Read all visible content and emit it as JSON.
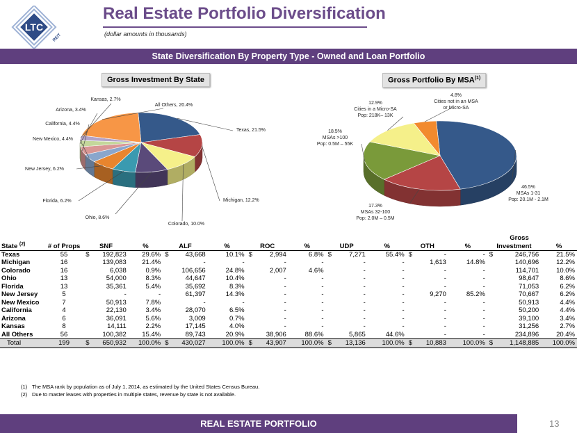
{
  "header": {
    "title": "Real Estate Portfolio Diversification",
    "subtitle": "(dollar amounts in thousands)",
    "logo_text": "LTC",
    "logo_subtext": "REIT"
  },
  "banner": "State Diversification  By Property Type - Owned and Loan Portfolio",
  "chart_data": [
    {
      "type": "pie",
      "title": "Gross Investment By State",
      "slices": [
        {
          "label": "Texas, 21.5%",
          "value": 21.5,
          "color": "#35598a"
        },
        {
          "label": "Michigan, 12.2%",
          "value": 12.2,
          "color": "#b54545"
        },
        {
          "label": "Colorado, 10.0%",
          "value": 10.0,
          "color": "#f5f08a"
        },
        {
          "label": "Ohio, 8.6%",
          "value": 8.6,
          "color": "#5a4a7a"
        },
        {
          "label": "Florida, 6.2%",
          "value": 6.2,
          "color": "#3a9ab0"
        },
        {
          "label": "New Jersey, 6.2%",
          "value": 6.2,
          "color": "#e8852e"
        },
        {
          "label": "New Mexico, 4.4%",
          "value": 4.4,
          "color": "#8aa6cc"
        },
        {
          "label": "California, 4.4%",
          "value": 4.4,
          "color": "#d99694"
        },
        {
          "label": "Arizona, 3.4%",
          "value": 3.4,
          "color": "#c4d79b"
        },
        {
          "label": "Kansas, 2.7%",
          "value": 2.7,
          "color": "#b3a2c7"
        },
        {
          "label": "All Others, 20.4%",
          "value": 20.4,
          "color": "#f79646"
        }
      ]
    },
    {
      "type": "pie",
      "title": "Gross Portfolio By MSA",
      "title_sup": "(1)",
      "slices": [
        {
          "label_lines": [
            "46.5%",
            "MSAs 1-31",
            "Pop: 20.1M - 2.1M"
          ],
          "value": 46.5,
          "color": "#35598a"
        },
        {
          "label_lines": [
            "17.3%",
            "MSAs 32-100",
            "Pop: 2.0M – 0.5M"
          ],
          "value": 17.3,
          "color": "#b54545"
        },
        {
          "label_lines": [
            "18.5%",
            "MSAs  >100",
            "Pop: 0.5M – 55K"
          ],
          "value": 18.5,
          "color": "#7a9a3a"
        },
        {
          "label_lines": [
            "12.9%",
            "Cities in a Micro-SA",
            "Pop: 218K– 13K"
          ],
          "value": 12.9,
          "color": "#f5f08a"
        },
        {
          "label_lines": [
            "4.8%",
            "Cities not in an MSA",
            "or Micro-SA"
          ],
          "value": 4.8,
          "color": "#f28a2e"
        }
      ]
    }
  ],
  "table": {
    "gross_top": "Gross",
    "columns": [
      "State",
      "# of Props",
      "SNF",
      "%",
      "ALF",
      "%",
      "ROC",
      "%",
      "UDP",
      "%",
      "OTH",
      "%",
      "Investment",
      "%"
    ],
    "state_sup": "(2)",
    "rows": [
      [
        "Texas",
        "55",
        "$",
        "192,823",
        "29.6%",
        "$",
        "43,668",
        "10.1%",
        "$",
        "2,994",
        "6.8%",
        "$",
        "7,271",
        "55.4%",
        "$",
        "-",
        "-",
        "$",
        "246,756",
        "21.5%"
      ],
      [
        "Michigan",
        "16",
        "",
        "139,083",
        "21.4%",
        "",
        "-",
        "-",
        "",
        "-",
        "-",
        "",
        "-",
        "-",
        "",
        "1,613",
        "14.8%",
        "",
        "140,696",
        "12.2%"
      ],
      [
        "Colorado",
        "16",
        "",
        "6,038",
        "0.9%",
        "",
        "106,656",
        "24.8%",
        "",
        "2,007",
        "4.6%",
        "",
        "-",
        "-",
        "",
        "-",
        "-",
        "",
        "114,701",
        "10.0%"
      ],
      [
        "Ohio",
        "13",
        "",
        "54,000",
        "8.3%",
        "",
        "44,647",
        "10.4%",
        "",
        "-",
        "-",
        "",
        "-",
        "-",
        "",
        "-",
        "-",
        "",
        "98,647",
        "8.6%"
      ],
      [
        "Florida",
        "13",
        "",
        "35,361",
        "5.4%",
        "",
        "35,692",
        "8.3%",
        "",
        "-",
        "-",
        "",
        "-",
        "-",
        "",
        "-",
        "-",
        "",
        "71,053",
        "6.2%"
      ],
      [
        "New Jersey",
        "5",
        "",
        "-",
        "-",
        "",
        "61,397",
        "14.3%",
        "",
        "-",
        "-",
        "",
        "-",
        "-",
        "",
        "9,270",
        "85.2%",
        "",
        "70,667",
        "6.2%"
      ],
      [
        "New Mexico",
        "7",
        "",
        "50,913",
        "7.8%",
        "",
        "-",
        "-",
        "",
        "-",
        "-",
        "",
        "-",
        "-",
        "",
        "-",
        "-",
        "",
        "50,913",
        "4.4%"
      ],
      [
        "California",
        "4",
        "",
        "22,130",
        "3.4%",
        "",
        "28,070",
        "6.5%",
        "",
        "-",
        "-",
        "",
        "-",
        "-",
        "",
        "-",
        "-",
        "",
        "50,200",
        "4.4%"
      ],
      [
        "Arizona",
        "6",
        "",
        "36,091",
        "5.6%",
        "",
        "3,009",
        "0.7%",
        "",
        "-",
        "-",
        "",
        "-",
        "-",
        "",
        "-",
        "-",
        "",
        "39,100",
        "3.4%"
      ],
      [
        "Kansas",
        "8",
        "",
        "14,111",
        "2.2%",
        "",
        "17,145",
        "4.0%",
        "",
        "-",
        "-",
        "",
        "-",
        "-",
        "",
        "-",
        "-",
        "",
        "31,256",
        "2.7%"
      ],
      [
        "All Others",
        "56",
        "",
        "100,382",
        "15.4%",
        "",
        "89,743",
        "20.9%",
        "",
        "38,906",
        "88.6%",
        "",
        "5,865",
        "44.6%",
        "",
        "-",
        "-",
        "",
        "234,896",
        "20.4%"
      ]
    ],
    "total": [
      "Total",
      "199",
      "$",
      "650,932",
      "100.0%",
      "$",
      "430,027",
      "100.0%",
      "$",
      "43,907",
      "100.0%",
      "$",
      "13,136",
      "100.0%",
      "$",
      "10,883",
      "100.0%",
      "$",
      "1,148,885",
      "100.0%"
    ]
  },
  "footnotes": [
    {
      "num": "(1)",
      "text": "The MSA rank by population  as of July 1, 2014, as estimated by the United States Census Bureau."
    },
    {
      "num": "(2)",
      "text": "Due to master leases with properties in multiple states, revenue by state is not available."
    }
  ],
  "footer": {
    "label": "REAL ESTATE PORTFOLIO",
    "page_number": "13"
  }
}
